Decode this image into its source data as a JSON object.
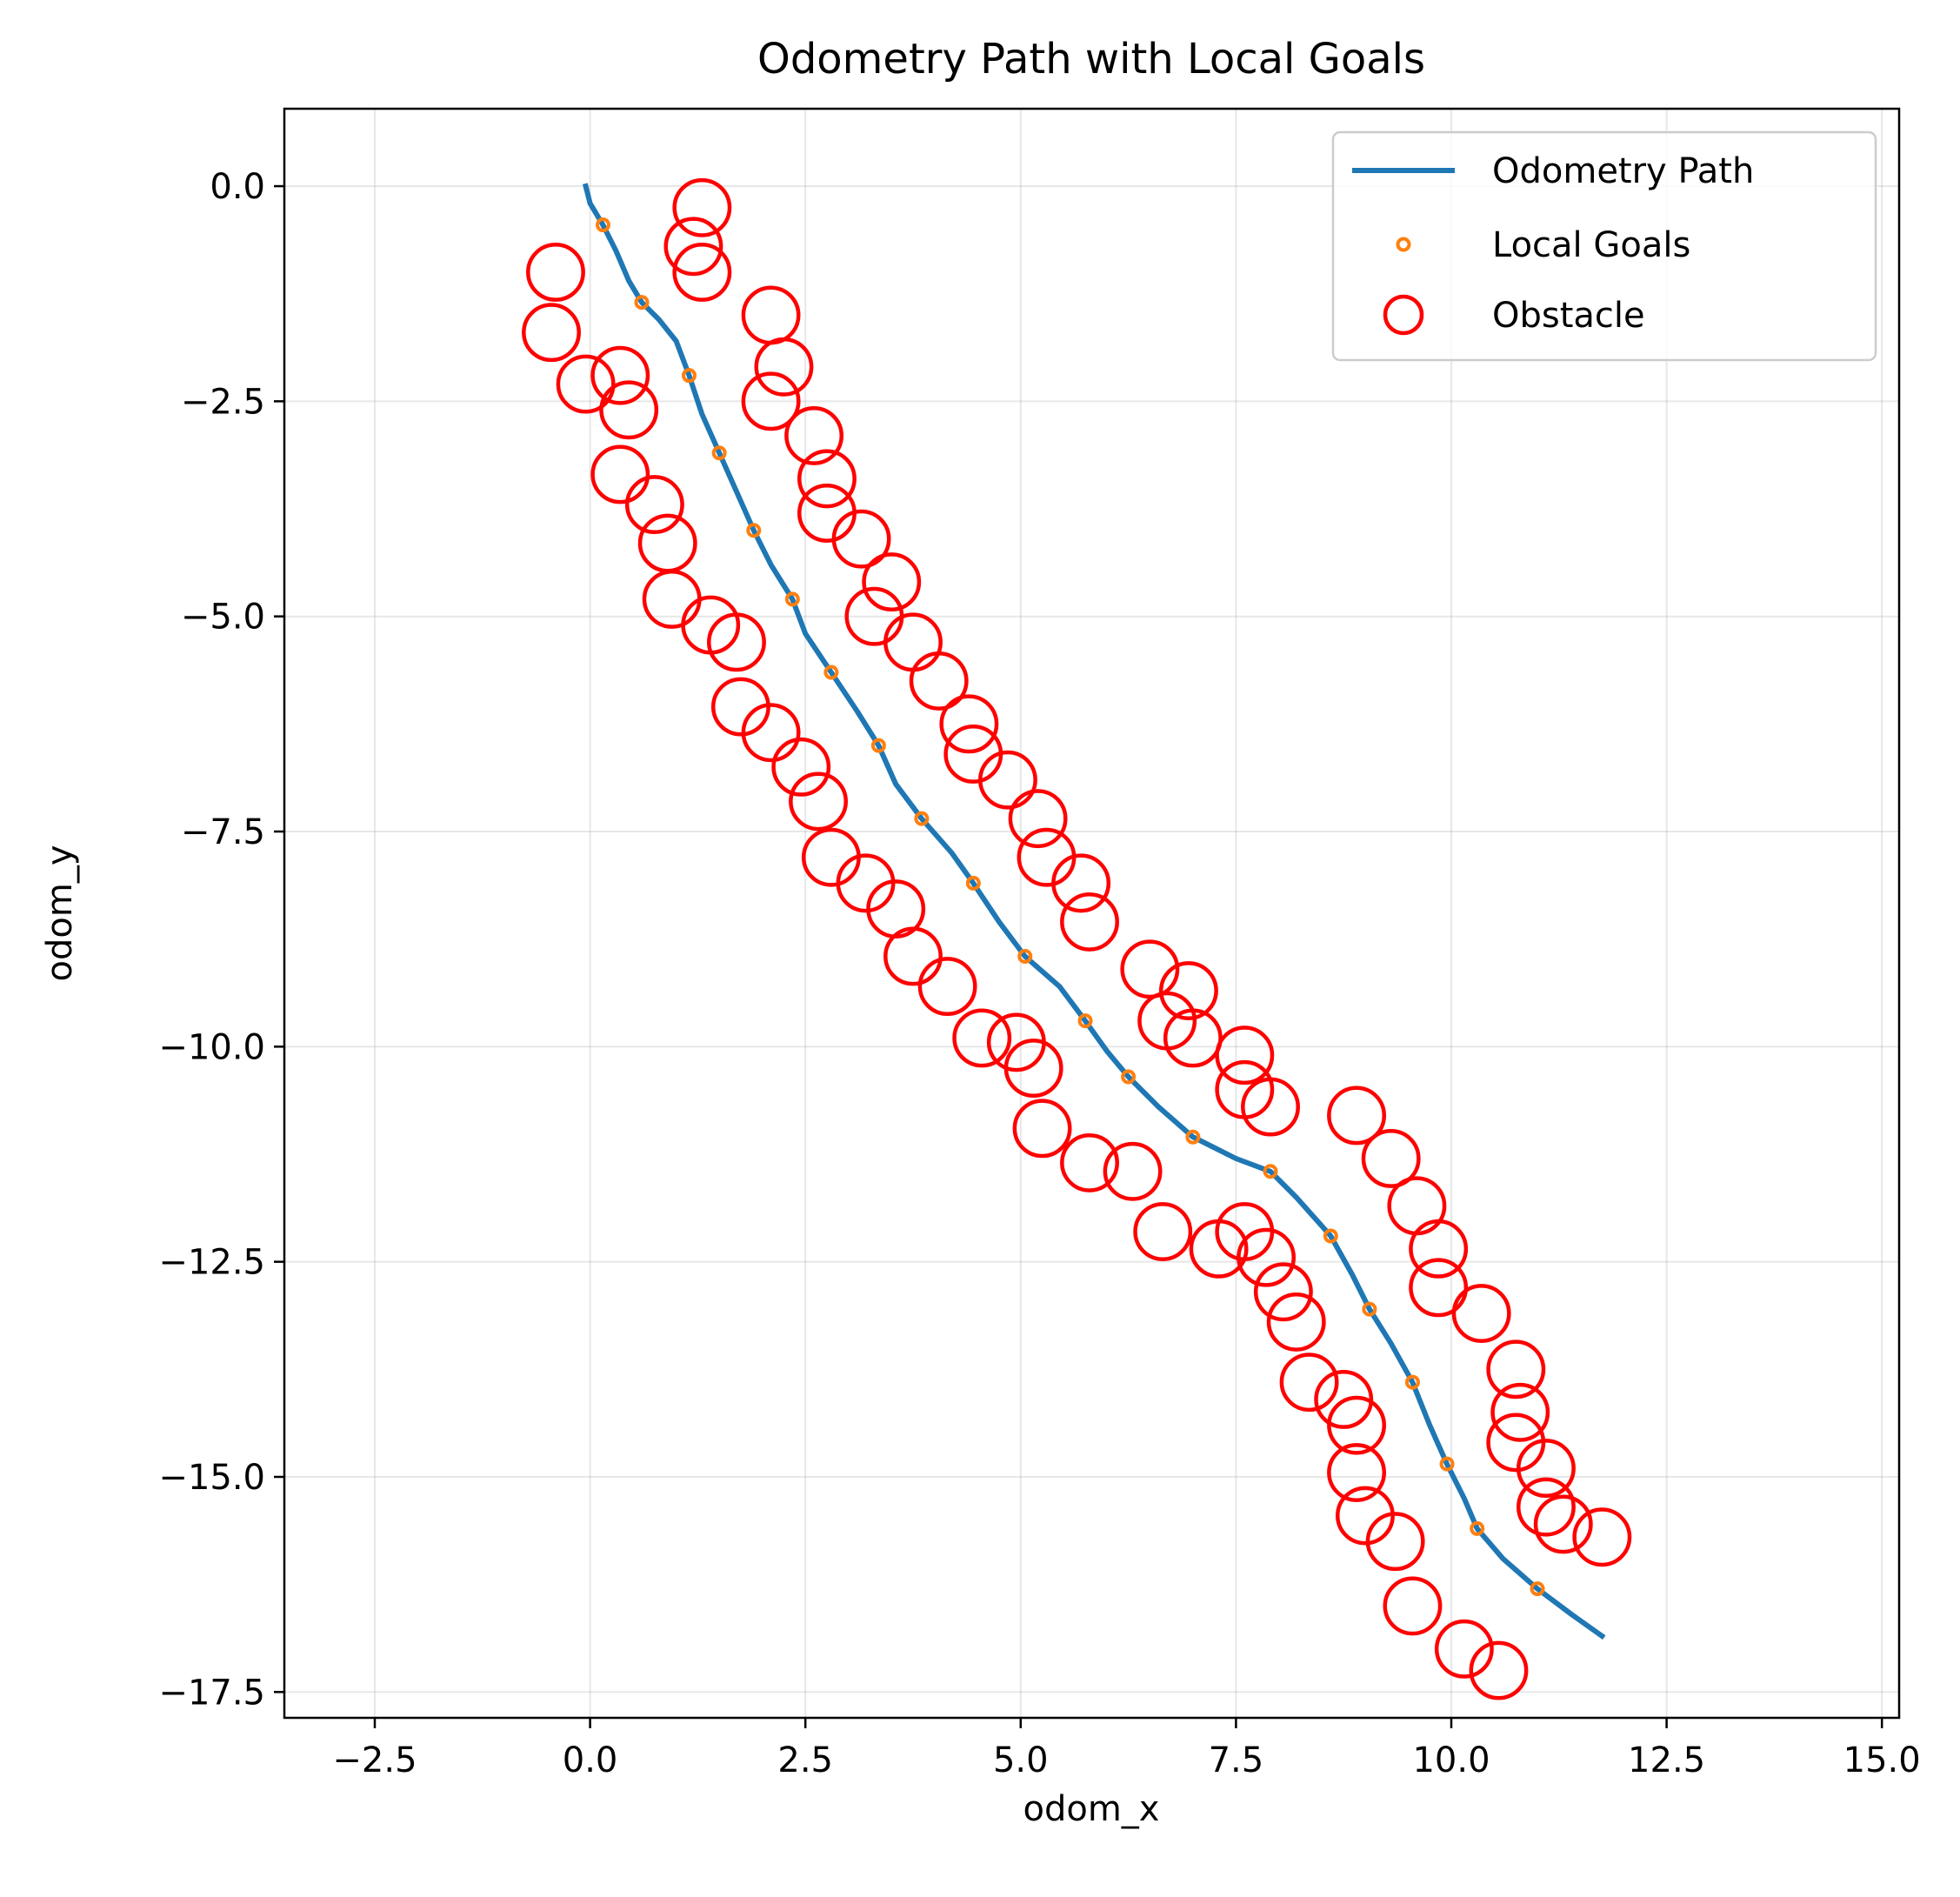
{
  "chart_data": {
    "type": "scatter",
    "title": "Odometry Path with Local Goals",
    "xlabel": "odom_x",
    "ylabel": "odom_y",
    "xlim": [
      -3.55,
      15.2
    ],
    "ylim": [
      -17.8,
      0.9
    ],
    "x_ticks": [
      -2.5,
      0.0,
      2.5,
      5.0,
      7.5,
      10.0,
      12.5,
      15.0
    ],
    "y_ticks": [
      0.0,
      -2.5,
      -5.0,
      -7.5,
      -10.0,
      -12.5,
      -15.0,
      -17.5
    ],
    "x_tick_labels": [
      "−2.5",
      "0.0",
      "2.5",
      "5.0",
      "7.5",
      "10.0",
      "12.5",
      "15.0"
    ],
    "y_tick_labels": [
      "0.0",
      "−2.5",
      "−5.0",
      "−7.5",
      "−10.0",
      "−12.5",
      "−15.0",
      "−17.5"
    ],
    "grid": true,
    "legend_position": "top-right",
    "series": [
      {
        "name": "Odometry Path",
        "kind": "line",
        "color": "#1f77b4",
        "points": [
          [
            -0.05,
            0.0
          ],
          [
            0.0,
            -0.2
          ],
          [
            0.15,
            -0.45
          ],
          [
            0.3,
            -0.75
          ],
          [
            0.45,
            -1.1
          ],
          [
            0.6,
            -1.35
          ],
          [
            0.8,
            -1.55
          ],
          [
            1.0,
            -1.8
          ],
          [
            1.15,
            -2.2
          ],
          [
            1.3,
            -2.65
          ],
          [
            1.5,
            -3.1
          ],
          [
            1.7,
            -3.55
          ],
          [
            1.9,
            -4.0
          ],
          [
            2.1,
            -4.4
          ],
          [
            2.35,
            -4.8
          ],
          [
            2.5,
            -5.2
          ],
          [
            2.8,
            -5.65
          ],
          [
            3.1,
            -6.1
          ],
          [
            3.35,
            -6.5
          ],
          [
            3.55,
            -6.95
          ],
          [
            3.85,
            -7.35
          ],
          [
            4.2,
            -7.75
          ],
          [
            4.45,
            -8.1
          ],
          [
            4.75,
            -8.55
          ],
          [
            5.05,
            -8.95
          ],
          [
            5.45,
            -9.3
          ],
          [
            5.75,
            -9.7
          ],
          [
            6.0,
            -10.05
          ],
          [
            6.25,
            -10.35
          ],
          [
            6.6,
            -10.7
          ],
          [
            7.0,
            -11.05
          ],
          [
            7.5,
            -11.3
          ],
          [
            7.9,
            -11.45
          ],
          [
            8.2,
            -11.75
          ],
          [
            8.6,
            -12.2
          ],
          [
            8.85,
            -12.65
          ],
          [
            9.05,
            -13.05
          ],
          [
            9.3,
            -13.45
          ],
          [
            9.55,
            -13.9
          ],
          [
            9.75,
            -14.4
          ],
          [
            9.95,
            -14.85
          ],
          [
            10.15,
            -15.25
          ],
          [
            10.3,
            -15.6
          ],
          [
            10.6,
            -15.95
          ],
          [
            11.0,
            -16.3
          ],
          [
            11.4,
            -16.6
          ],
          [
            11.75,
            -16.85
          ]
        ]
      },
      {
        "name": "Local Goals",
        "kind": "points",
        "color": "#ff7f0e",
        "points": [
          [
            0.15,
            -0.45
          ],
          [
            0.6,
            -1.35
          ],
          [
            1.15,
            -2.2
          ],
          [
            1.5,
            -3.1
          ],
          [
            1.9,
            -4.0
          ],
          [
            2.35,
            -4.8
          ],
          [
            2.8,
            -5.65
          ],
          [
            3.35,
            -6.5
          ],
          [
            3.85,
            -7.35
          ],
          [
            4.45,
            -8.1
          ],
          [
            5.05,
            -8.95
          ],
          [
            5.75,
            -9.7
          ],
          [
            6.25,
            -10.35
          ],
          [
            7.0,
            -11.05
          ],
          [
            7.9,
            -11.45
          ],
          [
            8.6,
            -12.2
          ],
          [
            9.05,
            -13.05
          ],
          [
            9.55,
            -13.9
          ],
          [
            9.95,
            -14.85
          ],
          [
            10.3,
            -15.6
          ],
          [
            11.0,
            -16.3
          ]
        ]
      },
      {
        "name": "Obstacle",
        "kind": "rings",
        "color": "#ff0000",
        "radius": 0.32,
        "points": [
          [
            1.3,
            -0.25
          ],
          [
            1.2,
            -0.7
          ],
          [
            1.3,
            -1.0
          ],
          [
            -0.4,
            -1.0
          ],
          [
            -0.45,
            -1.7
          ],
          [
            -0.05,
            -2.3
          ],
          [
            0.35,
            -2.2
          ],
          [
            0.45,
            -2.6
          ],
          [
            2.1,
            -1.5
          ],
          [
            2.25,
            -2.1
          ],
          [
            2.1,
            -2.5
          ],
          [
            2.6,
            -2.9
          ],
          [
            2.75,
            -3.4
          ],
          [
            2.75,
            -3.8
          ],
          [
            0.35,
            -3.35
          ],
          [
            0.75,
            -3.7
          ],
          [
            0.9,
            -4.15
          ],
          [
            3.15,
            -4.1
          ],
          [
            3.5,
            -4.6
          ],
          [
            3.3,
            -5.0
          ],
          [
            3.75,
            -5.3
          ],
          [
            0.95,
            -4.8
          ],
          [
            1.4,
            -5.1
          ],
          [
            1.7,
            -5.3
          ],
          [
            1.75,
            -6.05
          ],
          [
            2.1,
            -6.35
          ],
          [
            2.45,
            -6.75
          ],
          [
            2.65,
            -7.15
          ],
          [
            4.05,
            -5.75
          ],
          [
            4.4,
            -6.25
          ],
          [
            4.45,
            -6.6
          ],
          [
            4.85,
            -6.9
          ],
          [
            5.2,
            -7.35
          ],
          [
            5.3,
            -7.8
          ],
          [
            5.7,
            -8.1
          ],
          [
            5.8,
            -8.55
          ],
          [
            2.8,
            -7.8
          ],
          [
            3.2,
            -8.1
          ],
          [
            3.55,
            -8.4
          ],
          [
            3.75,
            -8.95
          ],
          [
            4.15,
            -9.3
          ],
          [
            4.55,
            -9.9
          ],
          [
            4.95,
            -9.95
          ],
          [
            5.15,
            -10.25
          ],
          [
            5.25,
            -10.95
          ],
          [
            5.8,
            -11.35
          ],
          [
            6.3,
            -11.45
          ],
          [
            6.5,
            -9.1
          ],
          [
            6.95,
            -9.35
          ],
          [
            6.7,
            -9.7
          ],
          [
            7.0,
            -9.9
          ],
          [
            7.6,
            -10.1
          ],
          [
            7.6,
            -10.5
          ],
          [
            7.9,
            -10.7
          ],
          [
            6.65,
            -12.15
          ],
          [
            7.3,
            -12.35
          ],
          [
            7.6,
            -12.15
          ],
          [
            7.85,
            -12.45
          ],
          [
            8.05,
            -12.85
          ],
          [
            8.2,
            -13.2
          ],
          [
            8.35,
            -13.9
          ],
          [
            8.75,
            -14.1
          ],
          [
            8.9,
            -14.4
          ],
          [
            8.9,
            -14.95
          ],
          [
            9.0,
            -15.45
          ],
          [
            9.35,
            -15.75
          ],
          [
            9.55,
            -16.5
          ],
          [
            10.15,
            -17.0
          ],
          [
            10.55,
            -17.25
          ],
          [
            8.9,
            -10.8
          ],
          [
            9.3,
            -11.3
          ],
          [
            9.6,
            -11.85
          ],
          [
            9.85,
            -12.35
          ],
          [
            9.85,
            -12.8
          ],
          [
            10.35,
            -13.1
          ],
          [
            10.75,
            -13.75
          ],
          [
            10.8,
            -14.25
          ],
          [
            10.75,
            -14.6
          ],
          [
            11.1,
            -14.9
          ],
          [
            11.1,
            -15.35
          ],
          [
            11.3,
            -15.55
          ],
          [
            11.75,
            -15.7
          ]
        ]
      }
    ]
  }
}
